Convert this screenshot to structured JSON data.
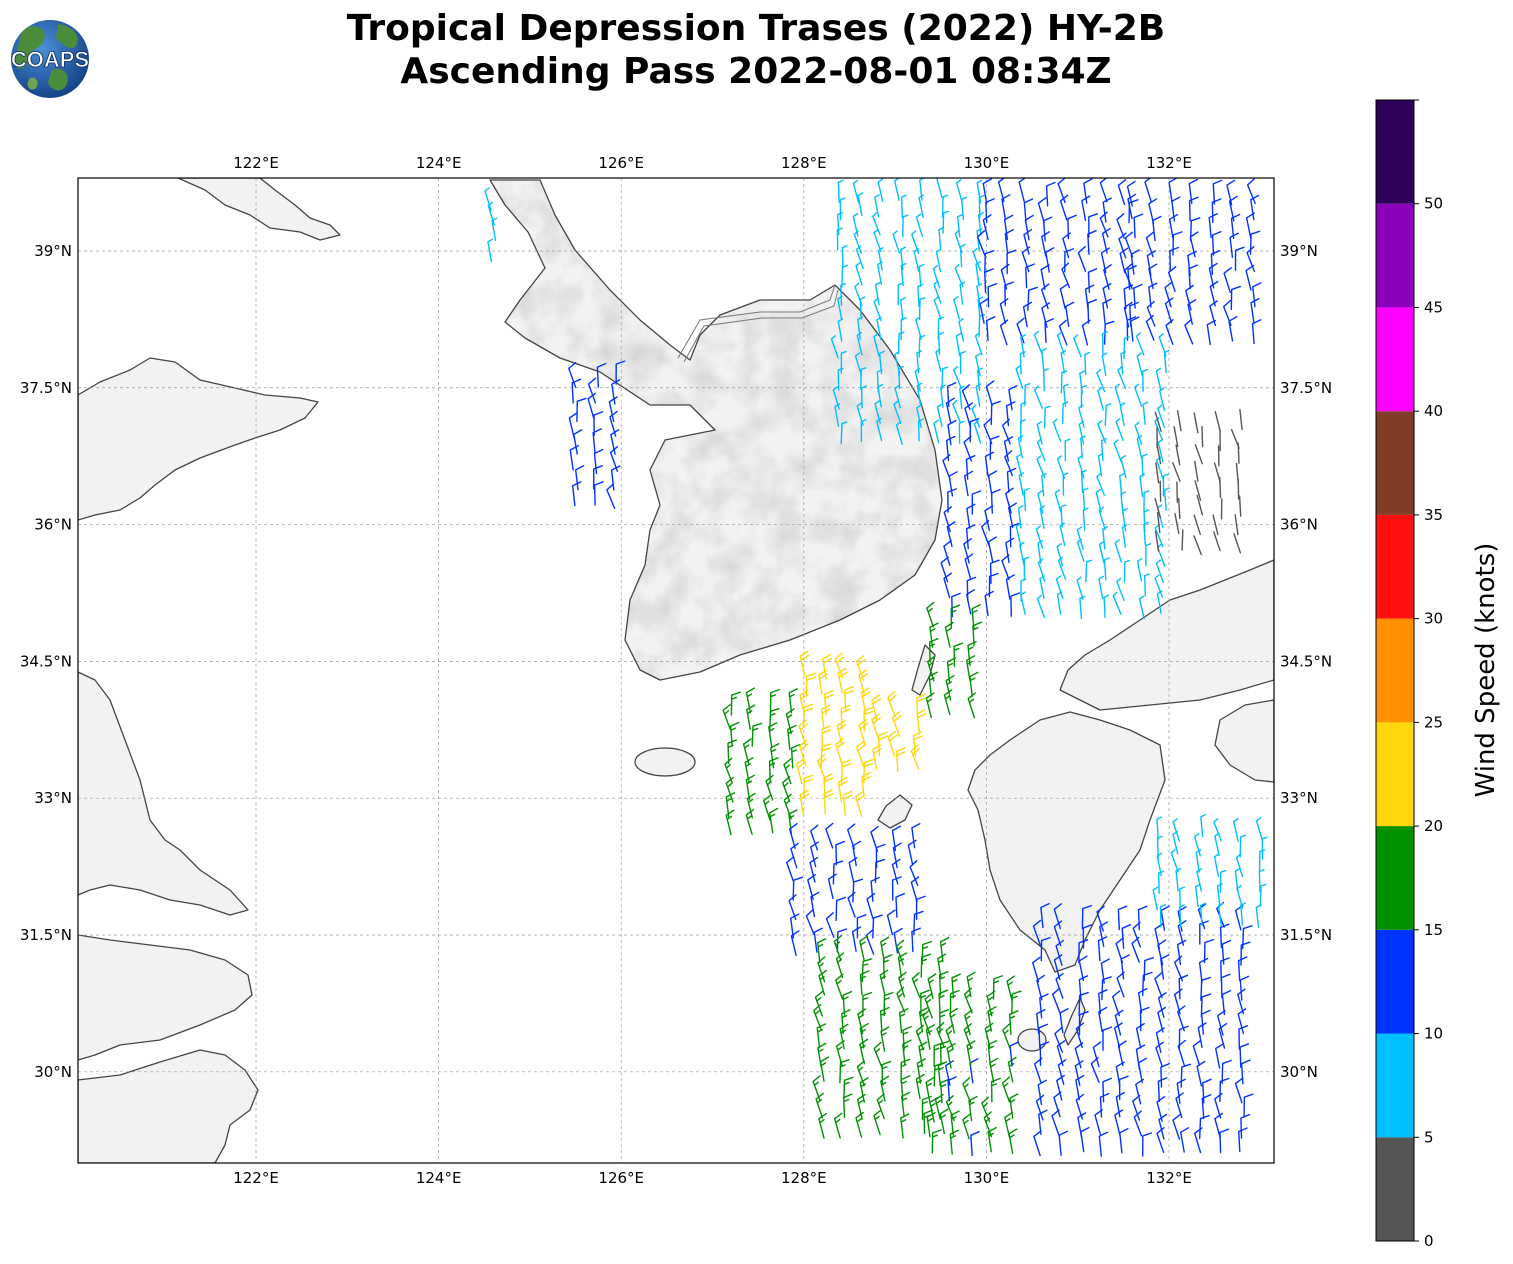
{
  "title": {
    "line1": "Tropical Depression Trases (2022) HY-2B",
    "line2": "Ascending Pass 2022-08-01 08:34Z"
  },
  "logo": {
    "text": "COAPS",
    "colors": {
      "ocean": "#1f5fb0",
      "land": "#3f8a3a"
    }
  },
  "map": {
    "lon_range": [
      120.05,
      133.15
    ],
    "lat_range": [
      29.0,
      39.8
    ],
    "lon_ticks": [
      {
        "value": 122,
        "label": "122°E"
      },
      {
        "value": 124,
        "label": "124°E"
      },
      {
        "value": 126,
        "label": "126°E"
      },
      {
        "value": 128,
        "label": "128°E"
      },
      {
        "value": 130,
        "label": "130°E"
      },
      {
        "value": 132,
        "label": "132°E"
      }
    ],
    "lat_ticks": [
      {
        "value": 39,
        "label": "39°N"
      },
      {
        "value": 37.5,
        "label": "37.5°N"
      },
      {
        "value": 36,
        "label": "36°N"
      },
      {
        "value": 34.5,
        "label": "34.5°N"
      },
      {
        "value": 33,
        "label": "33°N"
      },
      {
        "value": 31.5,
        "label": "31.5°N"
      },
      {
        "value": 30,
        "label": "30°N"
      }
    ],
    "grid": true
  },
  "colorbar": {
    "label": "Wind Speed (knots)",
    "ticks": [
      "0",
      "5",
      "10",
      "15",
      "20",
      "25",
      "30",
      "35",
      "40",
      "45",
      "50"
    ],
    "bins": [
      {
        "min": 0,
        "max": 5,
        "color": "#555555"
      },
      {
        "min": 5,
        "max": 10,
        "color": "#00bfff"
      },
      {
        "min": 10,
        "max": 15,
        "color": "#0033ff"
      },
      {
        "min": 15,
        "max": 20,
        "color": "#009100"
      },
      {
        "min": 20,
        "max": 25,
        "color": "#ffd60a"
      },
      {
        "min": 25,
        "max": 30,
        "color": "#ff9100"
      },
      {
        "min": 30,
        "max": 35,
        "color": "#ff1010"
      },
      {
        "min": 35,
        "max": 40,
        "color": "#823c28"
      },
      {
        "min": 40,
        "max": 45,
        "color": "#ff00ff"
      },
      {
        "min": 45,
        "max": 50,
        "color": "#8c00bd"
      },
      {
        "min": 50,
        "max": 55,
        "color": "#2d005a"
      }
    ]
  },
  "wind_regions": [
    {
      "lon": [
        128.4,
        130.0
      ],
      "lat": [
        36.9,
        39.7
      ],
      "speed": 8
    },
    {
      "lon": [
        130.0,
        131.6
      ],
      "lat": [
        38.0,
        39.7
      ],
      "speed": 12
    },
    {
      "lon": [
        131.6,
        133.0
      ],
      "lat": [
        38.0,
        39.7
      ],
      "speed": 13
    },
    {
      "lon": [
        129.6,
        130.4
      ],
      "lat": [
        35.0,
        37.3
      ],
      "speed": 12
    },
    {
      "lon": [
        130.4,
        132.0
      ],
      "lat": [
        35.0,
        37.9
      ],
      "speed": 8
    },
    {
      "lon": [
        131.9,
        132.9
      ],
      "lat": [
        35.7,
        37.2
      ],
      "speed": 3
    },
    {
      "lon": [
        129.4,
        129.9
      ],
      "lat": [
        33.9,
        35.0
      ],
      "speed": 17
    },
    {
      "lon": [
        127.2,
        128.0
      ],
      "lat": [
        32.6,
        34.1
      ],
      "speed": 17
    },
    {
      "lon": [
        128.0,
        128.8
      ],
      "lat": [
        32.8,
        34.4
      ],
      "speed": 22
    },
    {
      "lon": [
        128.8,
        129.3
      ],
      "lat": [
        33.3,
        34.0
      ],
      "speed": 22
    },
    {
      "lon": [
        127.9,
        129.3
      ],
      "lat": [
        31.3,
        32.6
      ],
      "speed": 12
    },
    {
      "lon": [
        128.2,
        129.6
      ],
      "lat": [
        29.3,
        31.3
      ],
      "speed": 17
    },
    {
      "lon": [
        129.4,
        130.4
      ],
      "lat": [
        29.1,
        31.0
      ],
      "speed": 16
    },
    {
      "lon": [
        130.6,
        133.0
      ],
      "lat": [
        29.1,
        31.6
      ],
      "speed": 12
    },
    {
      "lon": [
        131.9,
        133.0
      ],
      "lat": [
        31.6,
        32.6
      ],
      "speed": 8
    },
    {
      "lon": [
        125.5,
        126.1
      ],
      "lat": [
        36.2,
        37.6
      ],
      "speed": 12
    },
    {
      "lon": [
        124.6,
        124.8
      ],
      "lat": [
        38.9,
        39.5
      ],
      "speed": 9
    }
  ]
}
